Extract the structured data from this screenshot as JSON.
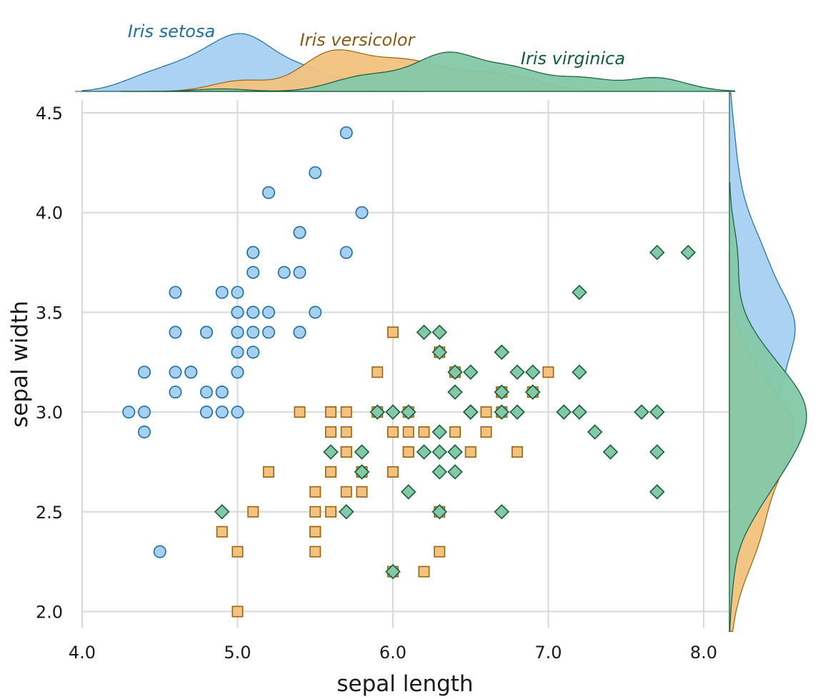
{
  "chart_data": {
    "type": "scatter",
    "xlabel": "sepal length",
    "ylabel": "sepal width",
    "xlim": [
      4.0,
      8.2
    ],
    "ylim": [
      1.9,
      4.6
    ],
    "x_ticks": [
      "4.0",
      "5.0",
      "6.0",
      "7.0",
      "8.0"
    ],
    "y_ticks": [
      "2.0",
      "2.5",
      "3.0",
      "3.5",
      "4.0",
      "4.5"
    ],
    "grid": true,
    "marginal_densities": true,
    "series": [
      {
        "name": "Iris setosa",
        "marker": "circle",
        "fill": "#a6d0f2",
        "stroke": "#1f6f9e",
        "label_color": "#1f6f9e",
        "points": [
          [
            5.1,
            3.5
          ],
          [
            4.9,
            3.0
          ],
          [
            4.7,
            3.2
          ],
          [
            4.6,
            3.1
          ],
          [
            5.0,
            3.6
          ],
          [
            5.4,
            3.9
          ],
          [
            4.6,
            3.4
          ],
          [
            5.0,
            3.4
          ],
          [
            4.4,
            2.9
          ],
          [
            4.9,
            3.1
          ],
          [
            5.4,
            3.7
          ],
          [
            4.8,
            3.4
          ],
          [
            4.8,
            3.0
          ],
          [
            4.3,
            3.0
          ],
          [
            5.8,
            4.0
          ],
          [
            5.7,
            4.4
          ],
          [
            5.4,
            3.9
          ],
          [
            5.1,
            3.5
          ],
          [
            5.7,
            3.8
          ],
          [
            5.1,
            3.8
          ],
          [
            5.4,
            3.4
          ],
          [
            5.1,
            3.7
          ],
          [
            4.6,
            3.6
          ],
          [
            5.1,
            3.3
          ],
          [
            4.8,
            3.4
          ],
          [
            5.0,
            3.0
          ],
          [
            5.0,
            3.4
          ],
          [
            5.2,
            3.5
          ],
          [
            5.2,
            3.4
          ],
          [
            4.7,
            3.2
          ],
          [
            4.8,
            3.1
          ],
          [
            5.4,
            3.4
          ],
          [
            5.2,
            4.1
          ],
          [
            5.5,
            4.2
          ],
          [
            4.9,
            3.1
          ],
          [
            5.0,
            3.2
          ],
          [
            5.5,
            3.5
          ],
          [
            4.9,
            3.6
          ],
          [
            4.4,
            3.0
          ],
          [
            5.1,
            3.4
          ],
          [
            5.0,
            3.5
          ],
          [
            4.5,
            2.3
          ],
          [
            4.4,
            3.2
          ],
          [
            5.0,
            3.5
          ],
          [
            5.1,
            3.8
          ],
          [
            4.8,
            3.0
          ],
          [
            5.1,
            3.8
          ],
          [
            4.6,
            3.2
          ],
          [
            5.3,
            3.7
          ],
          [
            5.0,
            3.3
          ]
        ]
      },
      {
        "name": "Iris versicolor",
        "marker": "square",
        "fill": "#f2c27e",
        "stroke": "#9a6410",
        "label_color": "#8a5a12",
        "points": [
          [
            7.0,
            3.2
          ],
          [
            6.4,
            3.2
          ],
          [
            6.9,
            3.1
          ],
          [
            5.5,
            2.3
          ],
          [
            6.5,
            2.8
          ],
          [
            5.7,
            2.8
          ],
          [
            6.3,
            3.3
          ],
          [
            4.9,
            2.4
          ],
          [
            6.6,
            2.9
          ],
          [
            5.2,
            2.7
          ],
          [
            5.0,
            2.0
          ],
          [
            5.9,
            3.0
          ],
          [
            6.0,
            2.2
          ],
          [
            6.1,
            2.9
          ],
          [
            5.6,
            2.9
          ],
          [
            6.7,
            3.1
          ],
          [
            5.6,
            3.0
          ],
          [
            5.8,
            2.7
          ],
          [
            6.2,
            2.2
          ],
          [
            5.6,
            2.5
          ],
          [
            5.9,
            3.2
          ],
          [
            6.1,
            2.8
          ],
          [
            6.3,
            2.5
          ],
          [
            6.1,
            2.8
          ],
          [
            6.4,
            2.9
          ],
          [
            6.6,
            3.0
          ],
          [
            6.8,
            2.8
          ],
          [
            6.7,
            3.0
          ],
          [
            6.0,
            2.9
          ],
          [
            5.7,
            2.6
          ],
          [
            5.5,
            2.4
          ],
          [
            5.5,
            2.4
          ],
          [
            5.8,
            2.7
          ],
          [
            6.0,
            2.7
          ],
          [
            5.4,
            3.0
          ],
          [
            6.0,
            3.4
          ],
          [
            6.7,
            3.1
          ],
          [
            6.3,
            2.3
          ],
          [
            5.6,
            3.0
          ],
          [
            5.5,
            2.5
          ],
          [
            5.5,
            2.6
          ],
          [
            6.1,
            3.0
          ],
          [
            5.8,
            2.6
          ],
          [
            5.0,
            2.3
          ],
          [
            5.6,
            2.7
          ],
          [
            5.7,
            3.0
          ],
          [
            5.7,
            2.9
          ],
          [
            6.2,
            2.9
          ],
          [
            5.1,
            2.5
          ],
          [
            5.7,
            2.8
          ]
        ]
      },
      {
        "name": "Iris virginica",
        "marker": "diamond",
        "fill": "#84c8a8",
        "stroke": "#135c3a",
        "label_color": "#135c3a",
        "points": [
          [
            6.3,
            3.3
          ],
          [
            5.8,
            2.7
          ],
          [
            7.1,
            3.0
          ],
          [
            6.3,
            2.9
          ],
          [
            6.5,
            3.0
          ],
          [
            7.6,
            3.0
          ],
          [
            4.9,
            2.5
          ],
          [
            7.3,
            2.9
          ],
          [
            6.7,
            2.5
          ],
          [
            7.2,
            3.6
          ],
          [
            6.5,
            3.2
          ],
          [
            6.4,
            2.7
          ],
          [
            6.8,
            3.0
          ],
          [
            5.7,
            2.5
          ],
          [
            5.8,
            2.8
          ],
          [
            6.4,
            3.2
          ],
          [
            6.5,
            3.0
          ],
          [
            7.7,
            3.8
          ],
          [
            7.7,
            2.6
          ],
          [
            6.0,
            2.2
          ],
          [
            6.9,
            3.2
          ],
          [
            5.6,
            2.8
          ],
          [
            7.7,
            2.8
          ],
          [
            6.3,
            2.7
          ],
          [
            6.7,
            3.3
          ],
          [
            7.2,
            3.2
          ],
          [
            6.2,
            2.8
          ],
          [
            6.1,
            3.0
          ],
          [
            6.4,
            2.8
          ],
          [
            7.2,
            3.0
          ],
          [
            7.4,
            2.8
          ],
          [
            7.9,
            3.8
          ],
          [
            6.4,
            2.8
          ],
          [
            6.3,
            2.8
          ],
          [
            6.1,
            2.6
          ],
          [
            7.7,
            3.0
          ],
          [
            6.3,
            3.4
          ],
          [
            6.4,
            3.1
          ],
          [
            6.0,
            3.0
          ],
          [
            6.9,
            3.1
          ],
          [
            6.7,
            3.1
          ],
          [
            6.9,
            3.1
          ],
          [
            5.8,
            2.7
          ],
          [
            6.8,
            3.2
          ],
          [
            6.7,
            3.3
          ],
          [
            6.7,
            3.0
          ],
          [
            6.3,
            2.5
          ],
          [
            6.5,
            3.0
          ],
          [
            6.2,
            3.4
          ],
          [
            5.9,
            3.0
          ]
        ]
      }
    ]
  }
}
